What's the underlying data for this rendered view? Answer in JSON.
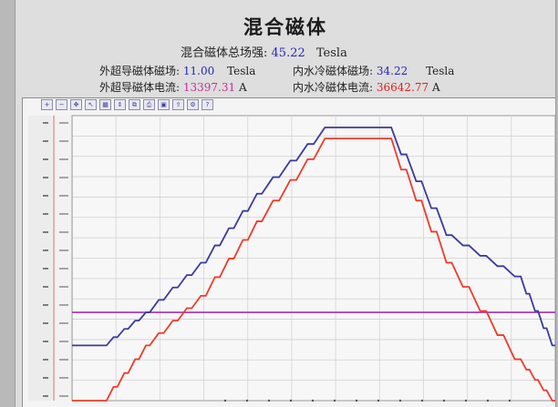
{
  "title": "混合磁体",
  "total_field": {
    "label": "混合磁体总场强:",
    "value": "45.22",
    "unit": "Tesla"
  },
  "outer_field": {
    "label": "外超导磁体磁场:",
    "value": "11.00",
    "unit": "Tesla"
  },
  "inner_field": {
    "label": "内水冷磁体磁场:",
    "value": "34.22",
    "unit": "Tesla"
  },
  "outer_current": {
    "label": "外超导磁体电流:",
    "value": "13397.31",
    "unit": "A"
  },
  "inner_current": {
    "label": "内水冷磁体电流:",
    "value": "36642.77",
    "unit": "A"
  },
  "colors": {
    "blue_series": "#3a3aa0",
    "red_series": "#f03a2a",
    "threshold": "#a030b0"
  },
  "toolbar_icons": [
    "zoom-in-icon",
    "zoom-out-icon",
    "pan-icon",
    "cursor-icon",
    "grid-icon",
    "scale-icon",
    "copy-icon",
    "print-icon",
    "save-icon",
    "export-icon",
    "settings-icon",
    "help-icon"
  ],
  "chart_data": {
    "type": "line",
    "x": [
      0,
      40,
      90,
      155,
      220,
      300,
      370,
      440,
      520,
      560
    ],
    "series": [
      {
        "values": [
          0.2,
          0.2,
          0.32,
          0.5,
          0.75,
          0.99,
          0.99,
          0.6,
          0.45,
          0.2
        ]
      },
      {
        "values": [
          0.0,
          0.0,
          0.2,
          0.38,
          0.65,
          0.95,
          0.95,
          0.5,
          0.15,
          0.0
        ]
      }
    ],
    "threshold": 0.32,
    "grid": true
  }
}
